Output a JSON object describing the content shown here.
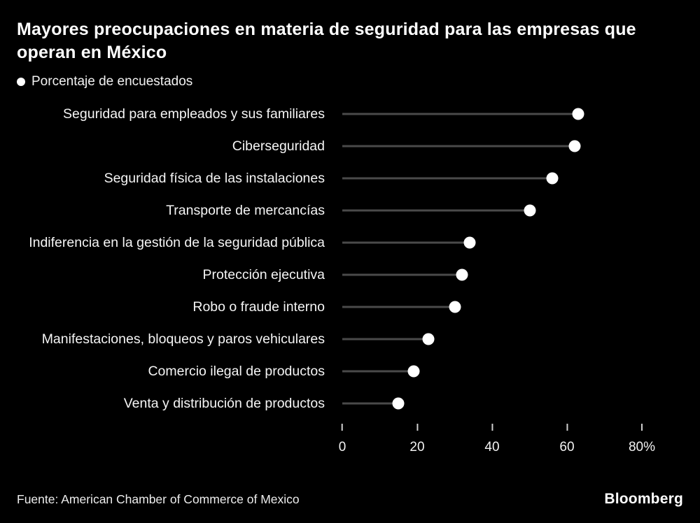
{
  "header": {
    "title": "Mayores preocupaciones en materia de seguridad para las empresas que operan en México",
    "legend_label": "Porcentaje de encuestados"
  },
  "chart_data": {
    "type": "scatter",
    "subtype": "lollipop-dot",
    "title": "Mayores preocupaciones en materia de seguridad para las empresas que operan en México",
    "legend": [
      "Porcentaje de encuestados"
    ],
    "categories": [
      "Seguridad para empleados y sus familiares",
      "Ciberseguridad",
      "Seguridad física de las instalaciones",
      "Transporte de mercancías",
      "Indiferencia en la gestión de la seguridad pública",
      "Protección ejecutiva",
      "Robo o fraude interno",
      "Manifestaciones, bloqueos y paros vehiculares",
      "Comercio ilegal de productos",
      "Venta y distribución de productos"
    ],
    "values": [
      63,
      62,
      56,
      50,
      34,
      32,
      30,
      23,
      19,
      15
    ],
    "xlabel": "",
    "ylabel": "",
    "xlim": [
      0,
      80
    ],
    "ticks": [
      0,
      20,
      40,
      60,
      80
    ],
    "tick_labels": [
      "0",
      "20",
      "40",
      "60",
      "80%"
    ],
    "grid": false,
    "legend_position": "top-left",
    "dot_color": "#ffffff",
    "line_color": "#4a4a4a",
    "background_color": "#000000",
    "text_color": "#ffffff"
  },
  "footer": {
    "source": "Fuente: American Chamber of Commerce of Mexico",
    "brand": "Bloomberg"
  }
}
